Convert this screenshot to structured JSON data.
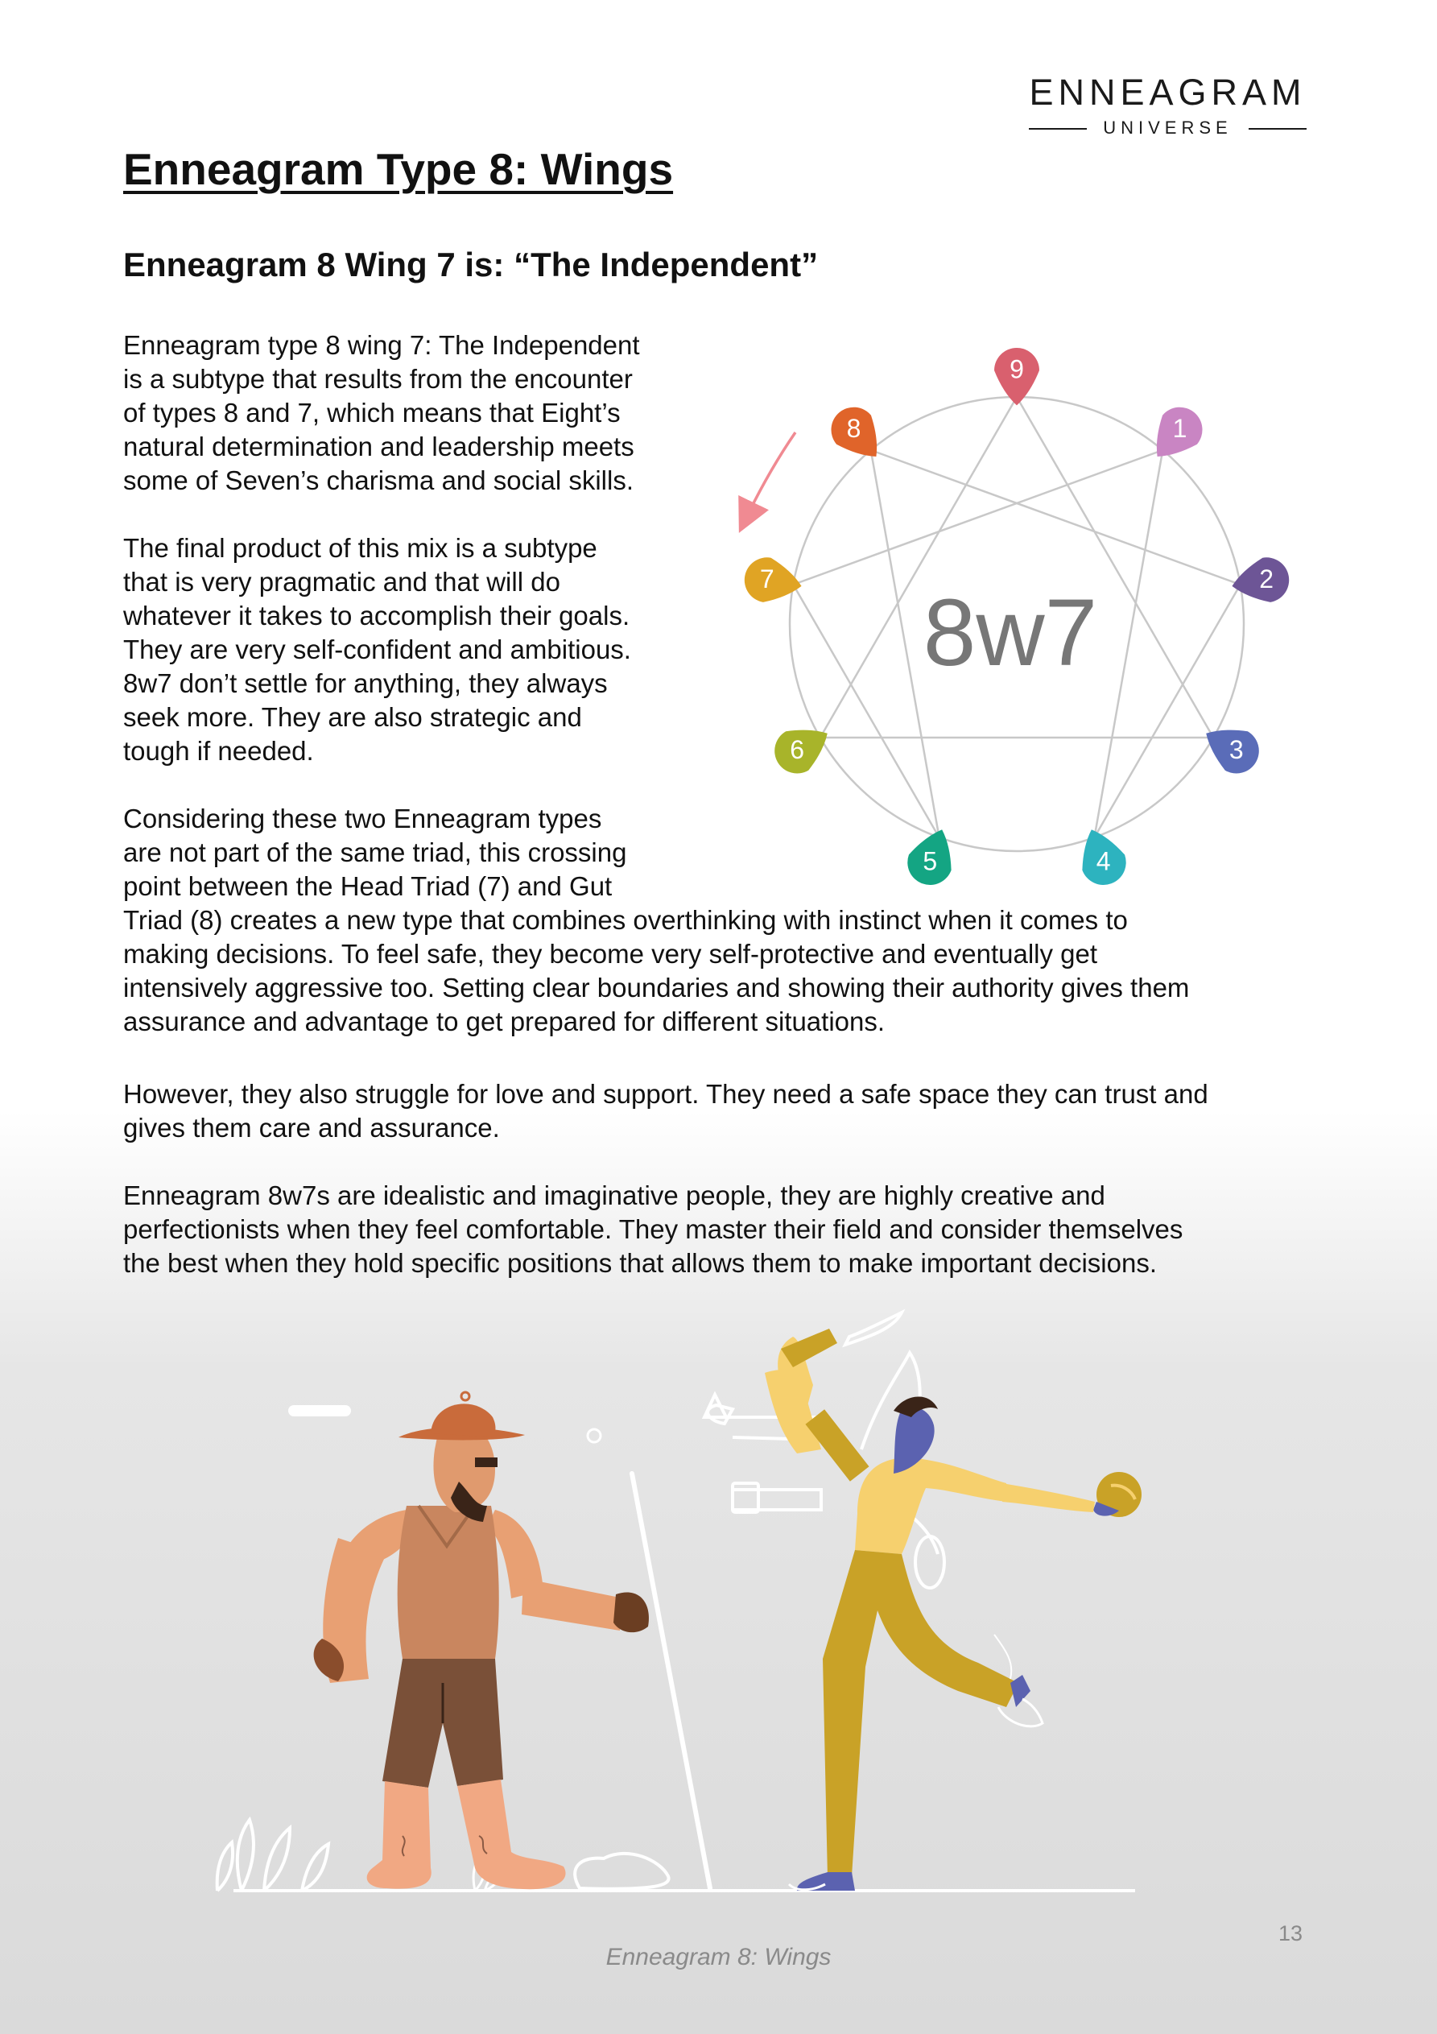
{
  "logo": {
    "main": "ENNEAGRAM",
    "sub": "UNIVERSE"
  },
  "page": {
    "title": "Enneagram Type 8: Wings",
    "subtitle": "Enneagram 8 Wing 7 is: “The Independent”",
    "page_number": "13",
    "caption": "Enneagram 8: Wings"
  },
  "paragraphs": {
    "p1_lines": [
      "Enneagram type 8 wing 7: The Independent",
      "is a subtype that results from the encounter",
      "of types 8 and 7, which means that Eight’s",
      "natural determination and leadership meets",
      "some of Seven’s charisma and social skills."
    ],
    "p2_lines": [
      "The final product of this mix is a subtype",
      "that is very pragmatic and that will do",
      "whatever it takes to accomplish their goals.",
      "They are very self-confident and ambitious.",
      "8w7 don’t settle for anything, they always",
      "seek more. They are also strategic and",
      "tough if needed."
    ],
    "p3_lines": [
      "Considering these two Enneagram types",
      "are not part of the same triad, this crossing",
      "point between the Head Triad (7) and Gut",
      "Triad (8) creates a new type that combines overthinking with instinct when it comes to",
      "making decisions. To feel safe, they become very self-protective and eventually get",
      "intensively aggressive too. Setting clear boundaries and showing their authority gives them",
      "assurance and advantage to get prepared for different situations."
    ],
    "p4_lines": [
      "However, they also struggle for love and support. They need a safe space they can trust and",
      "gives them care and assurance."
    ],
    "p5_lines": [
      "Enneagram 8w7s are idealistic and imaginative people, they are highly creative and",
      "perfectionists when they feel comfortable. They master their field and consider themselves",
      "the best when they hold specific positions that allows them to make important decisions."
    ]
  },
  "enneagram": {
    "center_label": "8w7",
    "points": [
      {
        "label": "9",
        "color": "#d9606e"
      },
      {
        "label": "1",
        "color": "#c985c3"
      },
      {
        "label": "2",
        "color": "#6d5596"
      },
      {
        "label": "3",
        "color": "#5a6cb8"
      },
      {
        "label": "4",
        "color": "#2db3bf"
      },
      {
        "label": "5",
        "color": "#14a583"
      },
      {
        "label": "6",
        "color": "#a8b42a"
      },
      {
        "label": "7",
        "color": "#e0a424"
      },
      {
        "label": "8",
        "color": "#e0642a"
      }
    ],
    "arrow_color": "#f08a92"
  }
}
